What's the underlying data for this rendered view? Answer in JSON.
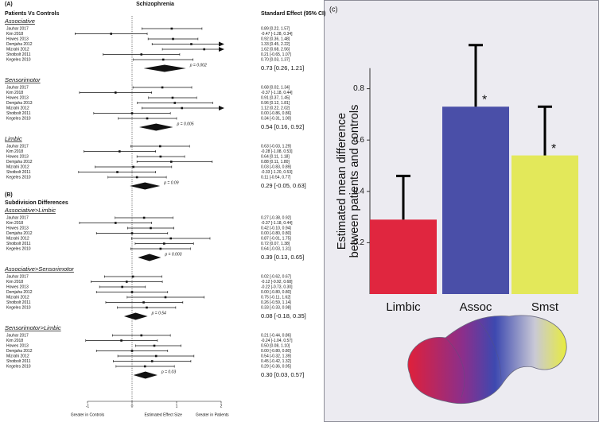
{
  "chart_data": [
    {
      "type": "forest",
      "title": "Schizophrenia",
      "effect_header": "Standard Effect (95% CI)",
      "xlim": [
        -1.3,
        2
      ],
      "xticks": [
        -1,
        0,
        1,
        2
      ],
      "axis_labels": [
        "Greater in Controls",
        "Estimated Effect Size",
        "Greater in Patients"
      ],
      "parts": [
        {
          "label": "(A)",
          "title": "Patients Vs Controls",
          "groups": [
            {
              "name": "Associative",
              "studies": [
                "Jauhar 2017",
                "Kim 2018",
                "Howes 2013",
                "Demjaha 2012",
                "Mizrahi 2012",
                "Shotbolt 2011",
                "Kegeles 2010"
              ],
              "values": [
                0.89,
                -0.47,
                0.92,
                1.33,
                1.62,
                0.21,
                0.7
              ],
              "lower": [
                0.22,
                -1.28,
                0.36,
                0.45,
                0.68,
                -0.65,
                0.03
              ],
              "upper": [
                1.57,
                0.34,
                1.48,
                2.22,
                2.56,
                1.07,
                1.37
              ],
              "value_labels": [
                "0.89 [0.22, 1.57]",
                "-0.47 [-1.28, 0.34]",
                "0.92 [0.36, 1.48]",
                "1.33 [0.45, 2.22]",
                "1.62 [0.68, 2.56]",
                "0.21 [-0.65, 1.07]",
                "0.70 [0.03, 1.37]"
              ],
              "pooled": {
                "value": 0.73,
                "lower": 0.26,
                "upper": 1.21,
                "label": "0.73 [0.26, 1.21]",
                "p_label": "p = 0.002"
              }
            },
            {
              "name": "Sensorimotor",
              "studies": [
                "Jauhar 2017",
                "Kim 2018",
                "Howes 2013",
                "Demjaha 2013",
                "Mizrahi 2012",
                "Shotbolt 2011",
                "Kegeles 2010"
              ],
              "values": [
                0.68,
                -0.37,
                0.91,
                0.96,
                1.12,
                0.0,
                0.34
              ],
              "lower": [
                0.02,
                -1.18,
                0.37,
                0.12,
                0.22,
                -0.86,
                -0.31
              ],
              "upper": [
                1.34,
                0.44,
                1.45,
                1.81,
                2.02,
                0.86,
                1.0
              ],
              "value_labels": [
                "0.68 [0.02, 1.34]",
                "-0.37 [-1.18, 0.44]",
                "0.91 [0.37, 1.45]",
                "0.96 [0.12, 1.81]",
                "1.12 [0.22, 2.02]",
                "0.00 [-0.86, 0.86]",
                "0.34 [-0.31, 1.00]"
              ],
              "pooled": {
                "value": 0.54,
                "lower": 0.16,
                "upper": 0.92,
                "label": "0.54 [0.16, 0.92]",
                "p_label": "p = 0.005"
              }
            },
            {
              "name": "Limbic",
              "studies": [
                "Jauhar 2017",
                "Kim 2018",
                "Howes 2013",
                "Demjaha 2012",
                "Mizrahi 2012",
                "Shotbolt 2011",
                "Kegeles 2010"
              ],
              "values": [
                0.63,
                -0.28,
                0.64,
                0.88,
                0.03,
                -0.33,
                0.11
              ],
              "lower": [
                -0.03,
                -1.08,
                0.11,
                0.11,
                -0.83,
                -1.2,
                -0.54
              ],
              "upper": [
                1.29,
                0.53,
                1.18,
                1.8,
                0.89,
                0.53,
                0.77
              ],
              "value_labels": [
                "0.63 [-0.03, 1.29]",
                "-0.28 [-1.08, 0.53]",
                "0.64 [0.11, 1.18]",
                "0.88 [0.11, 1.80]",
                "0.03 [-0.83, 0.89]",
                "-0.33 [-1.20, 0.53]",
                "0.11 [-0.54, 0.77]"
              ],
              "pooled": {
                "value": 0.29,
                "lower": -0.05,
                "upper": 0.63,
                "label": "0.29 [-0.05, 0.63]",
                "p_label": "p = 0.09"
              }
            }
          ]
        },
        {
          "label": "(B)",
          "title": "Subdivision Differences",
          "groups": [
            {
              "name": "Associative>Limbic",
              "studies": [
                "Jauhar 2017",
                "Kim 2018",
                "Howes 2013",
                "Demjaha 2012",
                "Mizrahi 2012",
                "Shotbolt 2011",
                "Kegeles 2010"
              ],
              "values": [
                0.27,
                -0.37,
                0.42,
                0.0,
                0.87,
                0.72,
                0.64
              ],
              "lower": [
                -0.38,
                -1.18,
                -0.1,
                -0.8,
                -0.01,
                0.07,
                -0.03
              ],
              "upper": [
                0.92,
                0.44,
                0.94,
                0.8,
                1.75,
                1.38,
                1.31
              ],
              "value_labels": [
                "0.27 [-0.38, 0.92]",
                "-0.37 [-1.18, 0.44]",
                "0.42 [-0.10, 0.94]",
                "0.00 [-0.80, 0.80]",
                "0.87 [-0.01, 1.75]",
                "0.72 [0.07, 1.38]",
                "0.64 [-0.03, 1.31]"
              ],
              "pooled": {
                "value": 0.39,
                "lower": 0.13,
                "upper": 0.65,
                "label": "0.39 [0.13, 0.65]",
                "p_label": "p = 0.003"
              }
            },
            {
              "name": "Associative>Sensorimotor",
              "studies": [
                "Jauhar 2017",
                "Kim 2018",
                "Howes 2013",
                "Demjaha 2012",
                "Mizrahi 2012",
                "Shotbolt 2011",
                "Kegeles 2010"
              ],
              "values": [
                0.02,
                -0.12,
                -0.22,
                0.0,
                0.75,
                0.26,
                0.33
              ],
              "lower": [
                -0.62,
                -0.92,
                -0.73,
                -0.8,
                -0.11,
                -0.59,
                -0.33
              ],
              "upper": [
                0.67,
                0.68,
                0.3,
                0.8,
                1.62,
                1.14,
                0.98
              ],
              "value_labels": [
                "0.02 [-0.62, 0.67]",
                "-0.12 [-0.92, 0.68]",
                "-0.22 [-0.73, 0.30]",
                "0.00 [-0.80, 0.80]",
                "0.75 [-0.11, 1.62]",
                "0.26 [-0.59, 1.14]",
                "0.33 [-0.33, 0.98]"
              ],
              "pooled": {
                "value": 0.08,
                "lower": -0.18,
                "upper": 0.35,
                "label": "0.08 [-0.18, 0.35]",
                "p_label": "p = 0.54"
              }
            },
            {
              "name": "Sensorimotor>Limbic",
              "studies": [
                "Jauhar 2017",
                "Kim 2018",
                "Howes 2013",
                "Demjaha 2012",
                "Mizrahi 2012",
                "Shotbolt 2011",
                "Kegeles 2010"
              ],
              "values": [
                0.21,
                -0.24,
                0.5,
                0.0,
                0.54,
                0.45,
                0.29
              ],
              "lower": [
                -0.44,
                -1.04,
                0.08,
                -0.8,
                -0.32,
                -0.42,
                -0.36
              ],
              "upper": [
                0.86,
                0.57,
                1.1,
                0.8,
                1.39,
                1.32,
                0.95
              ],
              "value_labels": [
                "0.21 [-0.44, 0.86]",
                "-0.24 [-1.04, 0.57]",
                "0.50 [0.08, 1.10]",
                "0.00 [-0.80, 0.80]",
                "0.54 [-0.32, 1.39]",
                "0.45 [-0.42, 1.32]",
                "0.29 [-0.36, 0.95]"
              ],
              "pooled": {
                "value": 0.3,
                "lower": 0.03,
                "upper": 0.57,
                "label": "0.30 [0.03, 0.57]",
                "p_label": "p = 0.03"
              }
            }
          ]
        }
      ]
    },
    {
      "type": "bar",
      "panel_label": "(c)",
      "y_label": [
        "Estimated mean difference",
        "between  patients and controls"
      ],
      "categories": [
        "Limbic",
        "Assoc",
        "Smst"
      ],
      "values": [
        0.29,
        0.73,
        0.54
      ],
      "errors": [
        0.17,
        0.24,
        0.19
      ],
      "colors": [
        "#e0263f",
        "#4a4fa8",
        "#e3e85a"
      ],
      "significance": [
        null,
        "*",
        "*"
      ],
      "ylim": [
        0,
        0.88
      ],
      "yticks": [
        0.2,
        0.4,
        0.6,
        0.8
      ]
    }
  ]
}
